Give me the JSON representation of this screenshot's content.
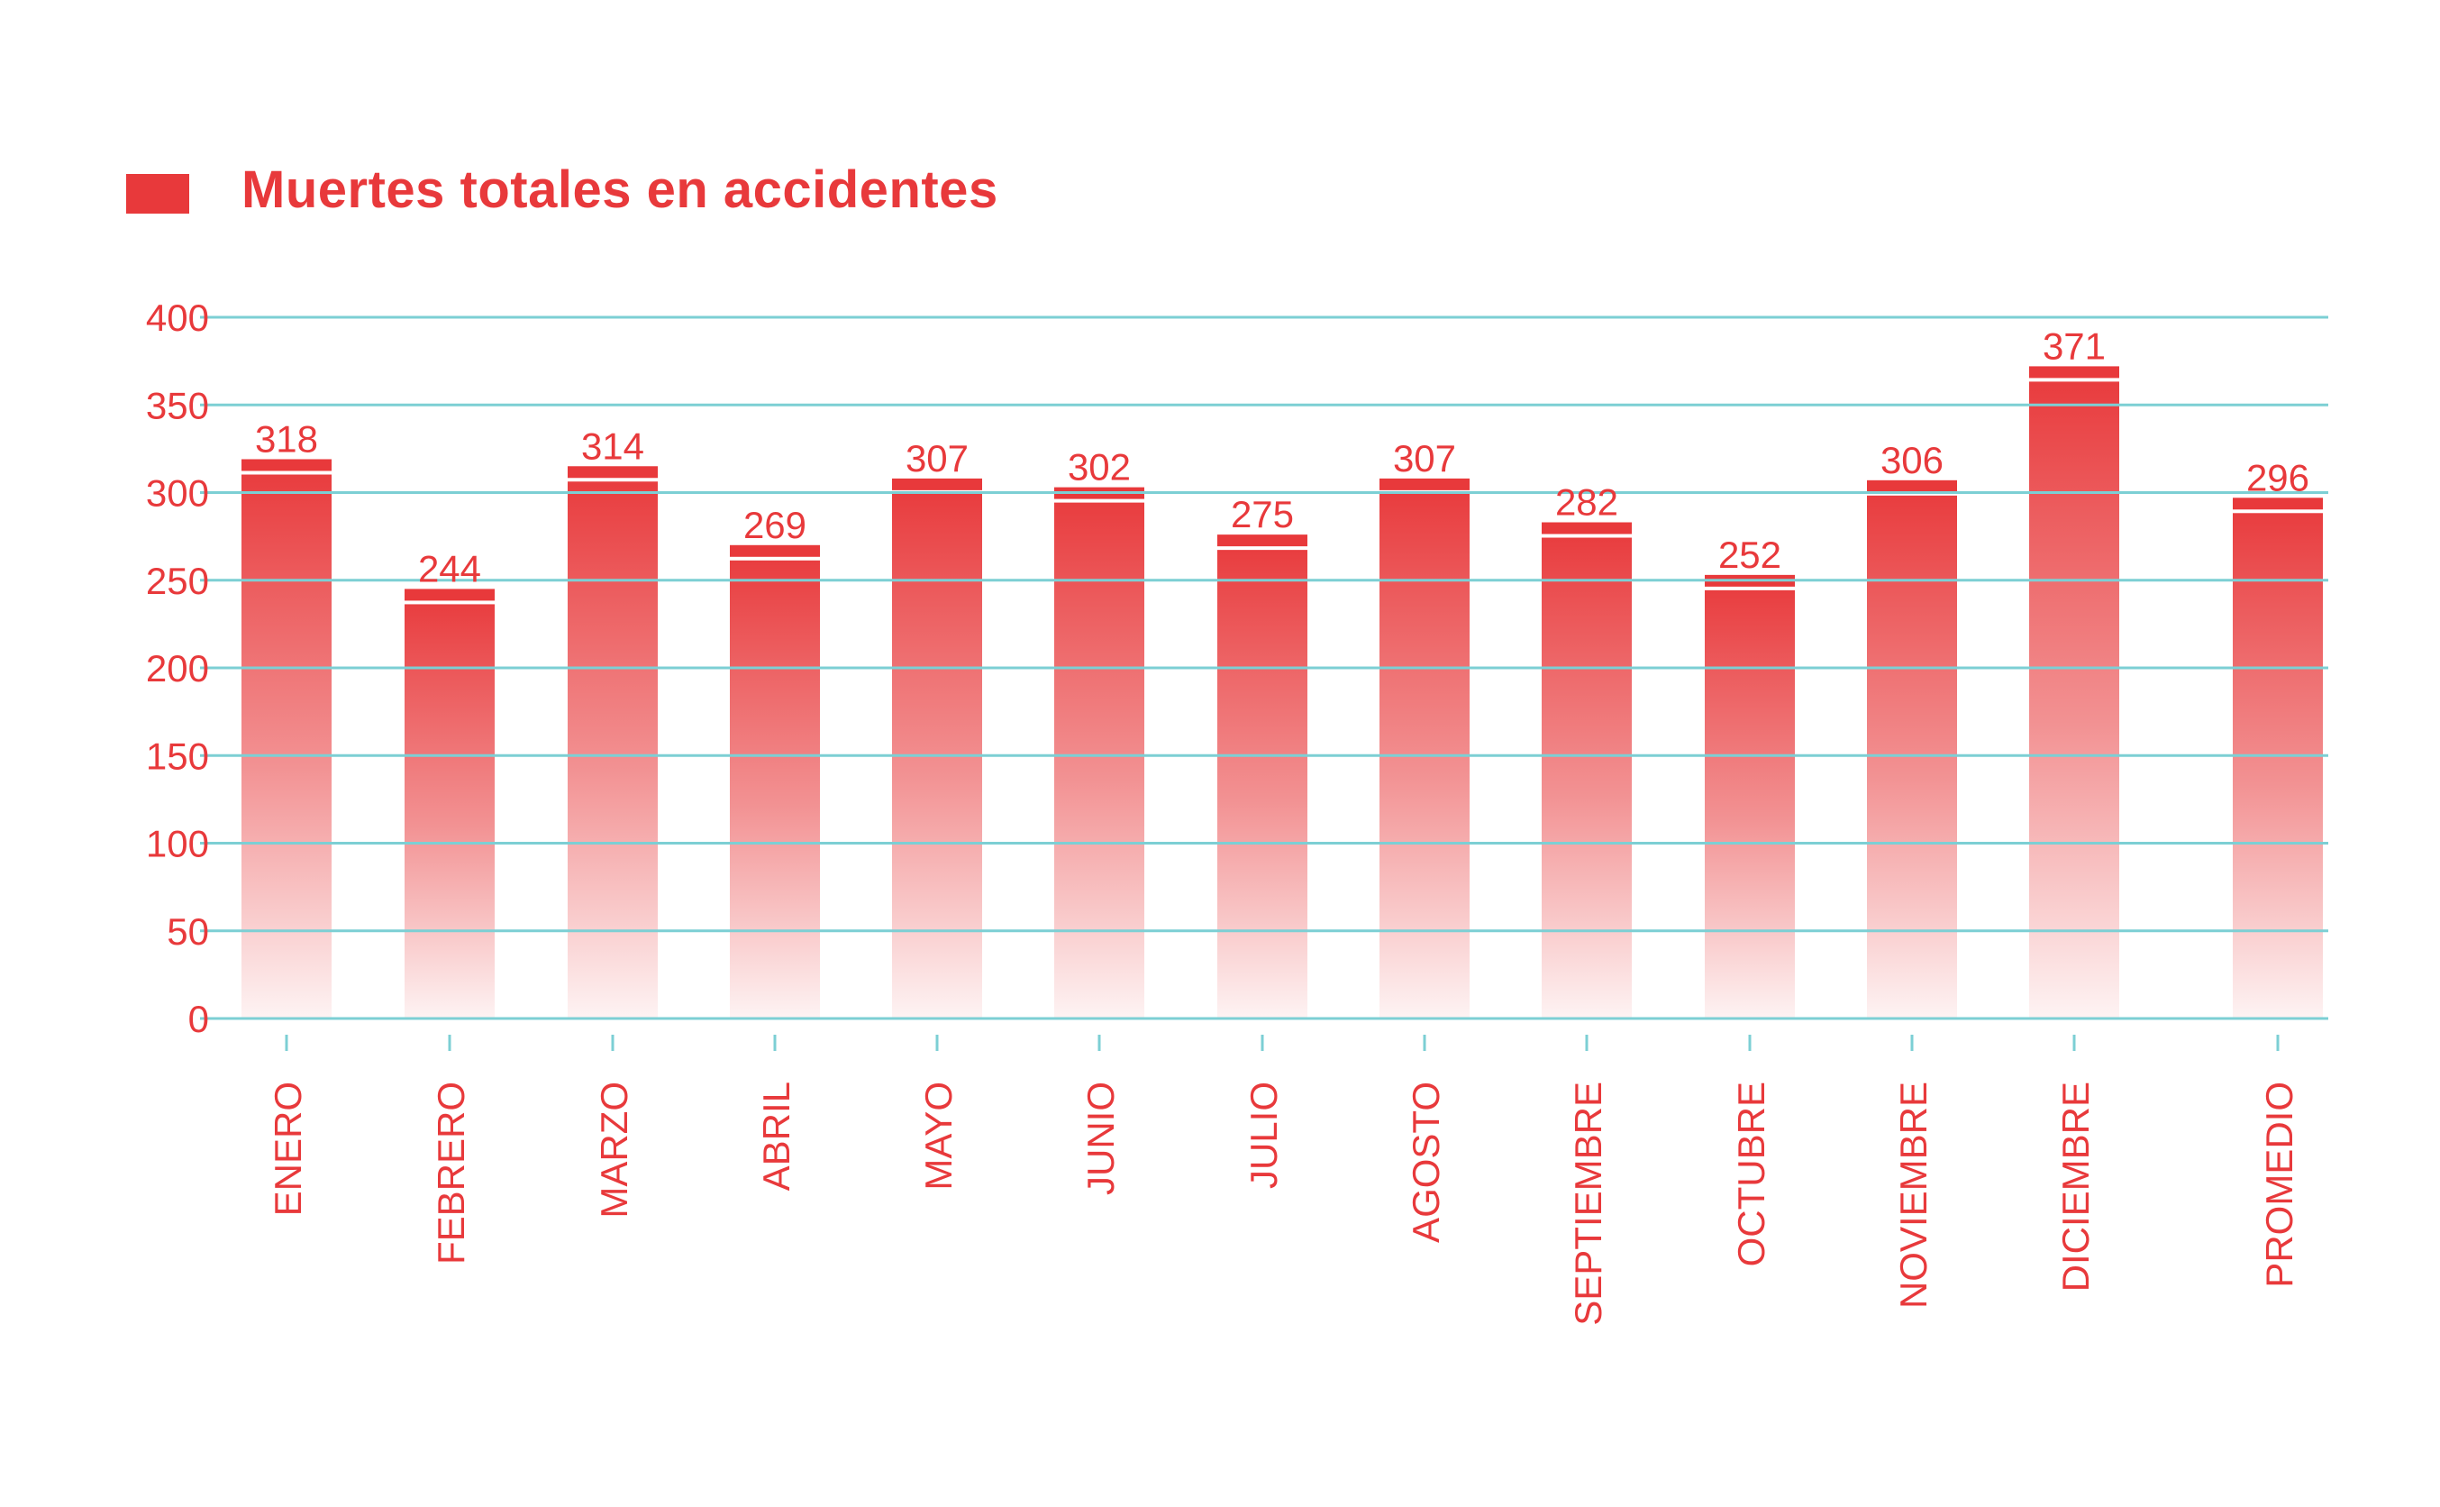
{
  "colors": {
    "accent": "#e8393b",
    "grid": "#7ccfd4",
    "background": "#ffffff"
  },
  "legend": {
    "label": "Muertes totales en accidentes",
    "placement": "top-left"
  },
  "chart_data": {
    "type": "bar",
    "title": "",
    "xlabel": "",
    "ylabel": "",
    "ylim": [
      0,
      400
    ],
    "yticks": [
      0,
      50,
      100,
      150,
      200,
      250,
      300,
      350,
      400
    ],
    "grid": true,
    "categories": [
      "ENERO",
      "FEBRERO",
      "MARZO",
      "ABRIL",
      "MAYO",
      "JUNIO",
      "JULIO",
      "AGOSTO",
      "SEPTIEMBRE",
      "OCTUBRE",
      "NOVIEMBRE",
      "DICIEMBRE",
      "PROMEDIO"
    ],
    "series": [
      {
        "name": "Muertes totales en accidentes",
        "values": [
          318,
          244,
          314,
          269,
          307,
          302,
          275,
          307,
          282,
          252,
          306,
          371,
          296
        ]
      }
    ]
  }
}
